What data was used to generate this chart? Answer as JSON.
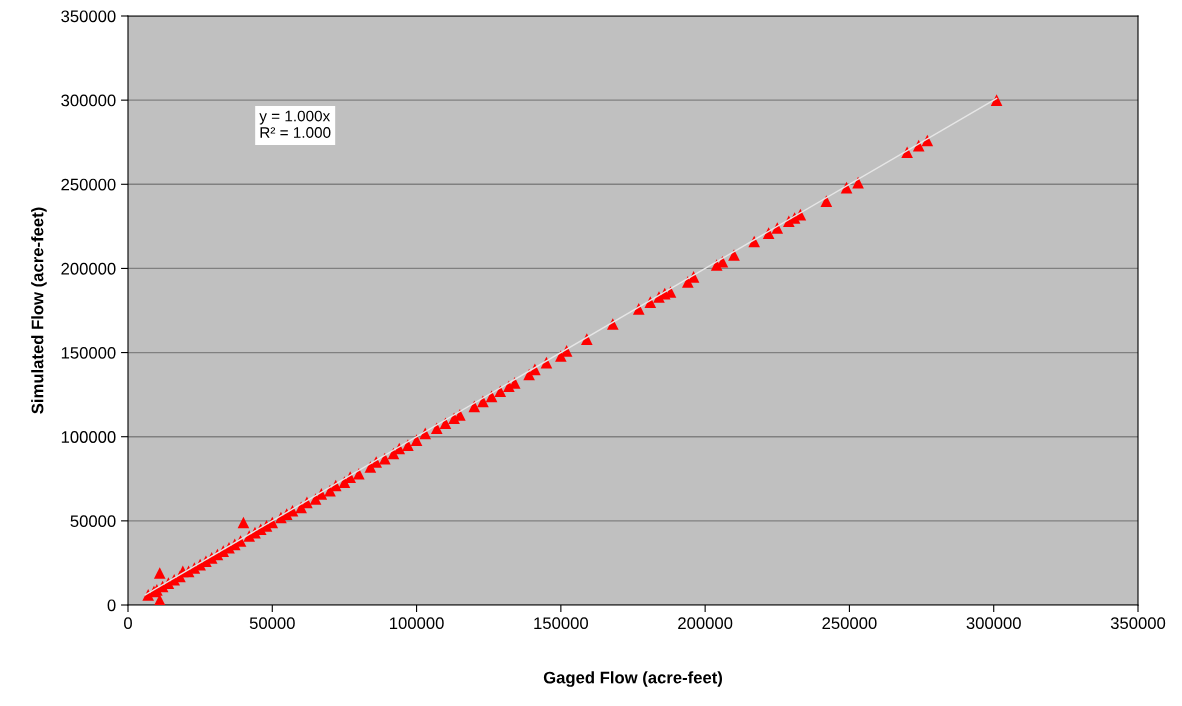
{
  "chart_data": {
    "type": "scatter",
    "xlabel": "Gaged Flow (acre-feet)",
    "ylabel": "Simulated Flow (acre-feet)",
    "annotations": [
      "y = 1.000x\nR² = 1.000"
    ],
    "xlim": [
      0,
      350000
    ],
    "xticks": [
      0,
      50000,
      100000,
      150000,
      200000,
      250000,
      300000,
      350000
    ],
    "ylim": [
      0,
      350000
    ],
    "yticks": [
      0,
      50000,
      100000,
      150000,
      200000,
      250000,
      300000,
      350000
    ],
    "grid": "y",
    "series": [
      {
        "marker": "triangle",
        "color": "#ff0000",
        "x": [
          7000,
          9000,
          10000,
          11000,
          11000,
          12000,
          14000,
          16000,
          18000,
          19000,
          21000,
          23000,
          25000,
          27000,
          29000,
          31000,
          33000,
          35000,
          37000,
          39000,
          40000,
          42000,
          44000,
          46000,
          48000,
          50000,
          53000,
          55000,
          57000,
          60000,
          62000,
          65000,
          67000,
          70000,
          72000,
          75000,
          77000,
          80000,
          84000,
          86000,
          89000,
          92000,
          94000,
          97000,
          100000,
          103000,
          107000,
          110000,
          113000,
          115000,
          120000,
          123000,
          126000,
          129000,
          132000,
          134000,
          139000,
          141000,
          145000,
          150000,
          152000,
          159000,
          168000,
          177000,
          181000,
          184000,
          186000,
          188000,
          194000,
          196000,
          204000,
          206000,
          210000,
          217000,
          222000,
          225000,
          229000,
          231000,
          233000,
          242000,
          249000,
          253000,
          270000,
          274000,
          277000,
          301000
        ],
        "values": [
          6000,
          8000,
          9000,
          19000,
          3000,
          11000,
          13000,
          15000,
          17000,
          20000,
          20000,
          22000,
          24000,
          26000,
          28000,
          30000,
          32000,
          34000,
          36000,
          38000,
          49000,
          41000,
          43000,
          45000,
          47000,
          49000,
          52000,
          54000,
          56000,
          58000,
          61000,
          63000,
          66000,
          68000,
          71000,
          73000,
          76000,
          78000,
          82000,
          85000,
          87000,
          90000,
          93000,
          95000,
          98000,
          102000,
          105000,
          108000,
          111000,
          113000,
          118000,
          121000,
          124000,
          127000,
          130000,
          132000,
          137000,
          140000,
          144000,
          148000,
          151000,
          158000,
          167000,
          176000,
          180000,
          183000,
          185000,
          186000,
          192000,
          195000,
          202000,
          204000,
          208000,
          216000,
          221000,
          224000,
          228000,
          230000,
          232000,
          240000,
          248000,
          251000,
          269000,
          273000,
          276000,
          300000
        ]
      },
      {
        "type": "line",
        "marker": "none",
        "color": "#e6e6e6",
        "x": [
          6000,
          301000
        ],
        "values": [
          6000,
          301000
        ]
      }
    ]
  }
}
